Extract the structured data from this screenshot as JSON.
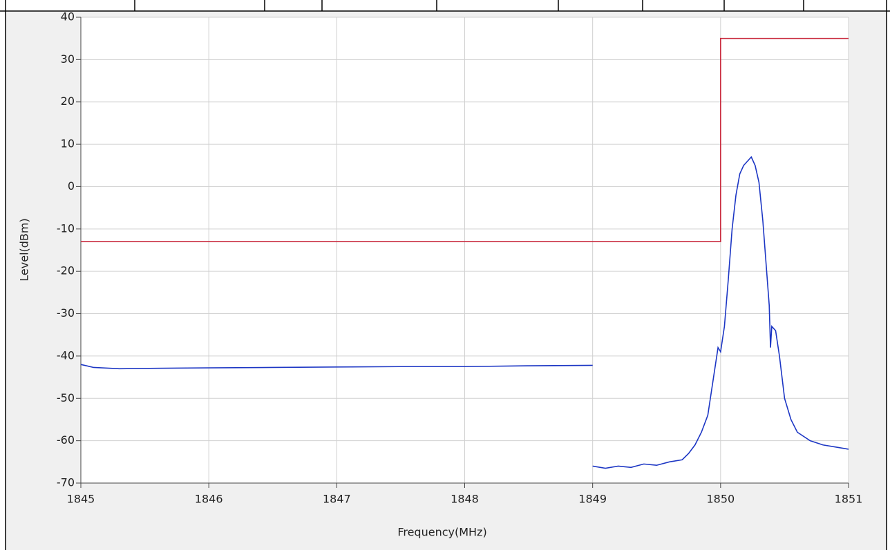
{
  "chart_data": {
    "type": "line",
    "xlabel": "Frequency(MHz)",
    "ylabel": "Level(dBm)",
    "xlim": [
      1845,
      1851
    ],
    "xticks": [
      1845,
      1846,
      1847,
      1848,
      1849,
      1850,
      1851
    ],
    "ylim": [
      -70,
      40
    ],
    "yticks": [
      -70,
      -60,
      -50,
      -40,
      -30,
      -20,
      -10,
      0,
      10,
      20,
      30,
      40
    ],
    "grid": true,
    "series": [
      {
        "color": "#c8283c",
        "x": [
          1845,
          1850,
          1850,
          1851
        ],
        "values": [
          -13,
          -13,
          35,
          35
        ]
      },
      {
        "color": "#1c36c4",
        "x": [
          1845,
          1845.1,
          1845.3,
          1845.6,
          1846,
          1846.5,
          1847,
          1847.5,
          1848,
          1848.5,
          1849,
          1849,
          1849,
          1849.1,
          1849.2,
          1849.3,
          1849.4,
          1849.5,
          1849.6,
          1849.7,
          1849.75,
          1849.8,
          1849.85,
          1849.9,
          1849.93,
          1849.96,
          1849.98,
          1850,
          1850.03,
          1850.06,
          1850.09,
          1850.12,
          1850.15,
          1850.18,
          1850.21,
          1850.24,
          1850.27,
          1850.3,
          1850.33,
          1850.36,
          1850.38,
          1850.39,
          1850.4,
          1850.43,
          1850.46,
          1850.5,
          1850.55,
          1850.6,
          1850.7,
          1850.8,
          1850.9,
          1851
        ],
        "values": [
          -42,
          -42.7,
          -43,
          -42.9,
          -42.8,
          -42.7,
          -42.6,
          -42.5,
          -42.5,
          -42.3,
          -42.2,
          null,
          -66,
          -66.5,
          -66,
          -66.3,
          -65.5,
          -65.8,
          -65,
          -64.5,
          -63,
          -61,
          -58,
          -54,
          -48,
          -42,
          -38,
          -39,
          -33,
          -22,
          -10,
          -2,
          3,
          5,
          6,
          7,
          5,
          1,
          -8,
          -20,
          -28,
          -38,
          -33,
          -34,
          -40,
          -50,
          -55,
          -58,
          -60,
          -61,
          -61.5,
          -62
        ]
      }
    ]
  }
}
